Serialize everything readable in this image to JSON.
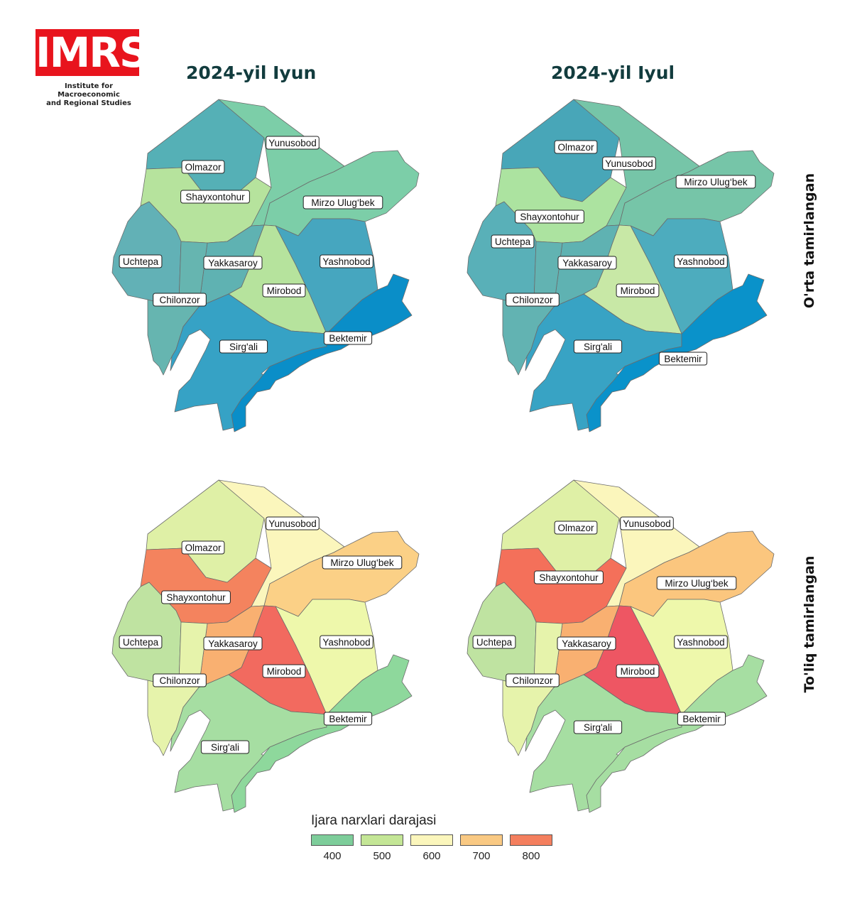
{
  "logo": {
    "text": "IMRS",
    "subtitle_line1": "Institute for Macroeconomic",
    "subtitle_line2": "and Regional Studies"
  },
  "column_titles": [
    "2024-yil Iyun",
    "2024-yil Iyul"
  ],
  "row_titles": [
    "O'rta tamirlangan",
    "To'liq tamirlangan"
  ],
  "legend": {
    "title": "Ijara narxlari darajasi",
    "items": [
      {
        "label": "400",
        "color": "#7dcd9a"
      },
      {
        "label": "500",
        "color": "#c4e696"
      },
      {
        "label": "600",
        "color": "#fbf6bc"
      },
      {
        "label": "700",
        "color": "#f9c983"
      },
      {
        "label": "800",
        "color": "#f47f5e"
      }
    ]
  },
  "districts": [
    "Olmazor",
    "Yunusobod",
    "Mirzo Ulug'bek",
    "Shayxontohur",
    "Uchtepa",
    "Yakkasaroy",
    "Yashnobod",
    "Chilonzor",
    "Mirobod",
    "Sirg'ali",
    "Bektemir"
  ],
  "district_labels": {
    "Olmazor": "Olmazor",
    "Yunusobod": "Yunusobod",
    "Mirzo Ulug'bek": "Mirzo Ulug‘bek",
    "Shayxontohur": "Shayxontohur",
    "Uchtepa": "Uchtepa",
    "Yakkasaroy": "Yakkasaroy",
    "Yashnobod": "Yashnobod",
    "Chilonzor": "Chilonzor",
    "Mirobod": "Mirobod",
    "Sirg'ali": "Sirg'ali",
    "Bektemir": "Bektemir"
  },
  "maps": [
    {
      "panel": "top-left",
      "colors": {
        "Olmazor": "#55b0b6",
        "Yunusobod": "#7ccea8",
        "Mirzo Ulug'bek": "#7ccea8",
        "Shayxontohur": "#b6e39d",
        "Uchtepa": "#62b1b6",
        "Yakkasaroy": "#5fb2b2",
        "Yashnobod": "#46a6bf",
        "Chilonzor": "#66b5b0",
        "Mirobod": "#b6e39d",
        "Sirg'ali": "#36a2c5",
        "Bektemir": "#0a8ec8"
      }
    },
    {
      "panel": "top-right",
      "colors": {
        "Olmazor": "#48a6b8",
        "Yunusobod": "#76c5a8",
        "Mirzo Ulug'bek": "#76c5a8",
        "Shayxontohur": "#ace3a0",
        "Uchtepa": "#59b0b8",
        "Yakkasaroy": "#5fb2b2",
        "Yashnobod": "#4dacbe",
        "Chilonzor": "#62b3b2",
        "Mirobod": "#c8e8a6",
        "Sirg'ali": "#38a3c4",
        "Bektemir": "#0a92ca"
      }
    },
    {
      "panel": "bottom-left",
      "colors": {
        "Olmazor": "#dff0a6",
        "Yunusobod": "#fbf6bc",
        "Mirzo Ulug'bek": "#fbd086",
        "Shayxontohur": "#f4835e",
        "Uchtepa": "#bfe3a1",
        "Yakkasaroy": "#f9b071",
        "Yashnobod": "#eef8ab",
        "Chilonzor": "#e6f3ab",
        "Mirobod": "#f26a5f",
        "Sirg'ali": "#a6dea2",
        "Bektemir": "#8ed89c"
      }
    },
    {
      "panel": "bottom-right",
      "colors": {
        "Olmazor": "#dff0a6",
        "Yunusobod": "#fbf6bc",
        "Mirzo Ulug'bek": "#fbc67e",
        "Shayxontohur": "#f4705a",
        "Uchtepa": "#bfe3a1",
        "Yakkasaroy": "#f9b071",
        "Yashnobod": "#eef8ab",
        "Chilonzor": "#e6f3ab",
        "Mirobod": "#ee5663",
        "Sirg'ali": "#a6dea2",
        "Bektemir": "#a6dea2"
      }
    }
  ]
}
